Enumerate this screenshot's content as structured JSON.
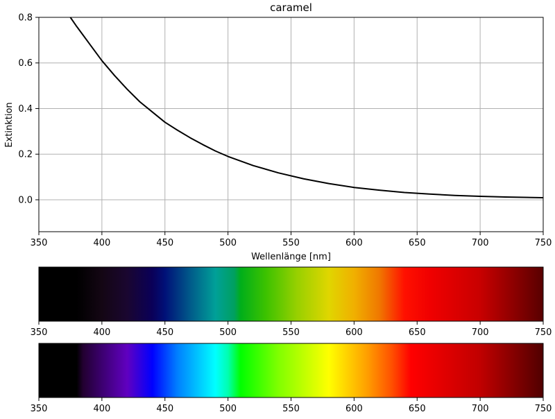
{
  "chart_data": [
    {
      "type": "line",
      "title": "caramel",
      "xlabel": "Wellenlänge [nm]",
      "ylabel": "Extinktion",
      "xlim": [
        350,
        750
      ],
      "ylim": [
        -0.14,
        0.8
      ],
      "grid": true,
      "xticks": [
        "350",
        "400",
        "450",
        "500",
        "550",
        "600",
        "650",
        "700",
        "750"
      ],
      "yticks": [
        "0.0",
        "0.2",
        "0.4",
        "0.6",
        "0.8"
      ],
      "series": [
        {
          "color": "#000000",
          "x": [
            375,
            380,
            390,
            400,
            410,
            420,
            430,
            440,
            450,
            460,
            470,
            480,
            490,
            500,
            520,
            540,
            560,
            580,
            600,
            620,
            640,
            660,
            680,
            700,
            720,
            750
          ],
          "y": [
            0.8,
            0.76,
            0.685,
            0.61,
            0.545,
            0.485,
            0.43,
            0.385,
            0.34,
            0.305,
            0.272,
            0.242,
            0.214,
            0.19,
            0.15,
            0.118,
            0.092,
            0.071,
            0.054,
            0.042,
            0.032,
            0.025,
            0.019,
            0.015,
            0.012,
            0.009
          ]
        }
      ]
    },
    {
      "type": "heatmap",
      "description_of_bar": "transmitted spectrum colour strip",
      "xlim": [
        350,
        750
      ],
      "xticks": [
        "350",
        "400",
        "450",
        "500",
        "550",
        "600",
        "650",
        "700",
        "750"
      ],
      "gradient_stops": [
        {
          "x": 350,
          "color": "#000000"
        },
        {
          "x": 380,
          "color": "#000000"
        },
        {
          "x": 400,
          "color": "#140614"
        },
        {
          "x": 420,
          "color": "#1a0630"
        },
        {
          "x": 440,
          "color": "#0a0058"
        },
        {
          "x": 450,
          "color": "#001078"
        },
        {
          "x": 470,
          "color": "#005a8a"
        },
        {
          "x": 490,
          "color": "#00a098"
        },
        {
          "x": 505,
          "color": "#00a060"
        },
        {
          "x": 510,
          "color": "#00ae1a"
        },
        {
          "x": 530,
          "color": "#3cc200"
        },
        {
          "x": 555,
          "color": "#98d000"
        },
        {
          "x": 580,
          "color": "#e0d600"
        },
        {
          "x": 600,
          "color": "#f0b000"
        },
        {
          "x": 620,
          "color": "#f07800"
        },
        {
          "x": 640,
          "color": "#ff1000"
        },
        {
          "x": 660,
          "color": "#f00000"
        },
        {
          "x": 700,
          "color": "#c80000"
        },
        {
          "x": 750,
          "color": "#580000"
        }
      ]
    },
    {
      "type": "heatmap",
      "description_of_bar": "reference visible spectrum colour strip",
      "xlim": [
        350,
        750
      ],
      "xticks": [
        "350",
        "400",
        "450",
        "500",
        "550",
        "600",
        "650",
        "700",
        "750"
      ],
      "gradient_stops": [
        {
          "x": 350,
          "color": "#000000"
        },
        {
          "x": 380,
          "color": "#000000"
        },
        {
          "x": 385,
          "color": "#220030"
        },
        {
          "x": 400,
          "color": "#3c0070"
        },
        {
          "x": 420,
          "color": "#6000c0"
        },
        {
          "x": 440,
          "color": "#0000ff"
        },
        {
          "x": 460,
          "color": "#0080ff"
        },
        {
          "x": 490,
          "color": "#00ffff"
        },
        {
          "x": 500,
          "color": "#00ffb0"
        },
        {
          "x": 510,
          "color": "#00ff00"
        },
        {
          "x": 540,
          "color": "#80ff00"
        },
        {
          "x": 580,
          "color": "#ffff00"
        },
        {
          "x": 610,
          "color": "#ffa000"
        },
        {
          "x": 630,
          "color": "#ff5000"
        },
        {
          "x": 645,
          "color": "#ff0000"
        },
        {
          "x": 700,
          "color": "#c00000"
        },
        {
          "x": 750,
          "color": "#500000"
        }
      ]
    }
  ]
}
